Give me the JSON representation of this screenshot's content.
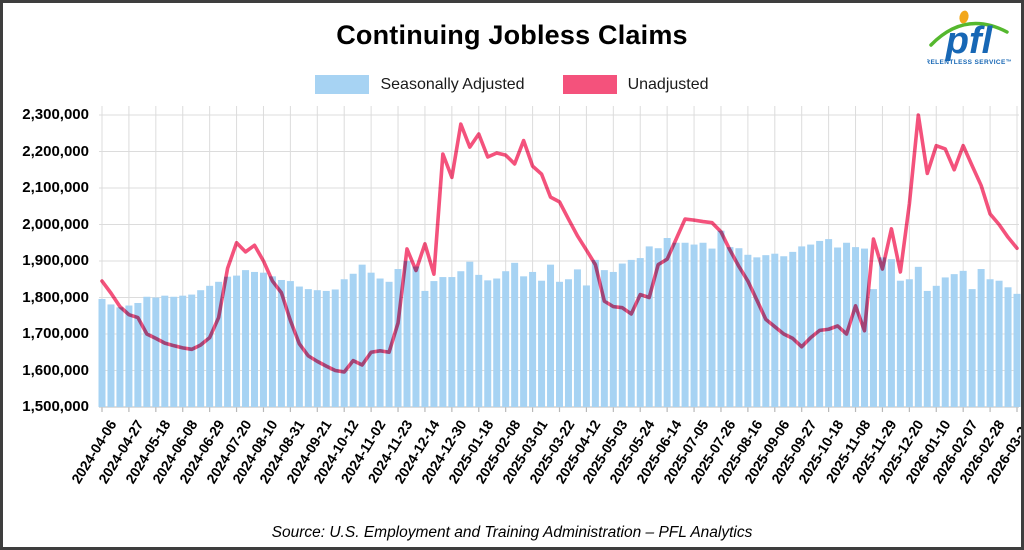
{
  "header": {
    "title": "Continuing Jobless Claims"
  },
  "logo": {
    "text": "pfl",
    "tagline": "RELENTLESS SERVICE™",
    "blue": "#1767b5",
    "green": "#55b82e",
    "yellow": "#f2a71b"
  },
  "legend": [
    {
      "label": "Seasonally Adjusted",
      "color": "#a7d3f3"
    },
    {
      "label": "Unadjusted",
      "color": "#f4527c"
    }
  ],
  "footer": {
    "source": "Source: U.S. Employment and Training Administration – PFL Analytics"
  },
  "chart_data": {
    "type": "bar+line",
    "title": "Continuing Jobless Claims",
    "ylabel": "",
    "xlabel": "",
    "grid": true,
    "legend_position": "top",
    "y_axis": {
      "min": 1500000,
      "max": 2300000,
      "tick_step": 100000
    },
    "y_tick_values": [
      1500000,
      1600000,
      1700000,
      1800000,
      1900000,
      2000000,
      2100000,
      2200000,
      2300000
    ],
    "y_tick_labels": [
      "1,500,000",
      "1,600,000",
      "1,700,000",
      "1,800,000",
      "1,900,000",
      "2,000,000",
      "2,100,000",
      "2,200,000",
      "2,300,000"
    ],
    "x_tick_every": 3,
    "x_tick_labels": [
      "2024-04-06",
      "2024-04-27",
      "2024-05-18",
      "2024-06-08",
      "2024-06-29",
      "2024-07-20",
      "2024-08-10",
      "2024-08-31",
      "2024-09-21",
      "2024-10-12",
      "2024-11-02",
      "2024-11-23",
      "2024-12-14",
      "2024-12-30",
      "2025-01-18",
      "2025-02-08",
      "2025-03-01",
      "2025-03-22",
      "2025-04-12",
      "2025-05-03",
      "2025-05-24",
      "2025-06-14",
      "2025-07-05",
      "2025-07-26",
      "2025-08-16",
      "2025-09-06",
      "2025-09-27",
      "2025-10-18",
      "2025-11-08",
      "2025-11-29",
      "2025-12-20",
      "2026-01-10",
      "2026-02-07",
      "2026-02-28",
      "2026-03-21"
    ],
    "series": [
      {
        "name": "Seasonally Adjusted",
        "type": "bar",
        "color": "#a7d3f3",
        "values": [
          1796000,
          1781000,
          1773000,
          1778000,
          1785000,
          1802000,
          1800000,
          1805000,
          1802000,
          1805000,
          1808000,
          1820000,
          1832000,
          1843000,
          1857000,
          1860000,
          1875000,
          1870000,
          1868000,
          1858000,
          1848000,
          1845000,
          1830000,
          1823000,
          1820000,
          1818000,
          1822000,
          1850000,
          1865000,
          1890000,
          1868000,
          1852000,
          1843000,
          1878000,
          1900000,
          1885000,
          1818000,
          1845000,
          1856000,
          1856000,
          1872000,
          1898000,
          1862000,
          1847000,
          1852000,
          1872000,
          1895000,
          1858000,
          1870000,
          1846000,
          1890000,
          1843000,
          1850000,
          1877000,
          1833000,
          1903000,
          1875000,
          1870000,
          1893000,
          1903000,
          1908000,
          1940000,
          1935000,
          1963000,
          1950000,
          1950000,
          1945000,
          1950000,
          1934000,
          1983000,
          1938000,
          1935000,
          1917000,
          1910000,
          1916000,
          1920000,
          1913000,
          1925000,
          1940000,
          1945000,
          1955000,
          1960000,
          1937000,
          1950000,
          1938000,
          1934000,
          1823000,
          1910000,
          1905000,
          1846000,
          1850000,
          1884000,
          1818000,
          1832000,
          1855000,
          1864000,
          1873000,
          1823000,
          1878000,
          1850000,
          1846000,
          1828000,
          1810000
        ]
      },
      {
        "name": "Unadjusted",
        "type": "line",
        "color": "#f4527c",
        "values": [
          1845000,
          1812000,
          1775000,
          1753000,
          1745000,
          1700000,
          1688000,
          1675000,
          1668000,
          1662000,
          1658000,
          1670000,
          1690000,
          1745000,
          1880000,
          1950000,
          1925000,
          1943000,
          1900000,
          1845000,
          1813000,
          1737000,
          1673000,
          1640000,
          1625000,
          1612000,
          1600000,
          1596000,
          1627000,
          1615000,
          1650000,
          1654000,
          1650000,
          1730000,
          1933000,
          1874000,
          1947000,
          1864000,
          2193000,
          2129000,
          2275000,
          2212000,
          2248000,
          2185000,
          2196000,
          2190000,
          2166000,
          2230000,
          2160000,
          2138000,
          2075000,
          2062000,
          2015000,
          1969000,
          1930000,
          1890000,
          1790000,
          1775000,
          1772000,
          1755000,
          1808000,
          1800000,
          1890000,
          1905000,
          1960000,
          2015000,
          2012000,
          2008000,
          2005000,
          1980000,
          1930000,
          1885000,
          1845000,
          1793000,
          1740000,
          1720000,
          1700000,
          1688000,
          1665000,
          1690000,
          1710000,
          1713000,
          1722000,
          1700000,
          1777000,
          1709000,
          1960000,
          1878000,
          1988000,
          1870000,
          2056000,
          2300000,
          2140000,
          2216000,
          2207000,
          2150000,
          2216000,
          2161000,
          2107000,
          2029000,
          2000000,
          1965000,
          1935000
        ]
      }
    ]
  },
  "style": {
    "grid_color": "#dcdcdc",
    "axis_color": "#c7c7c7",
    "tick_color": "#b8b8b8"
  }
}
